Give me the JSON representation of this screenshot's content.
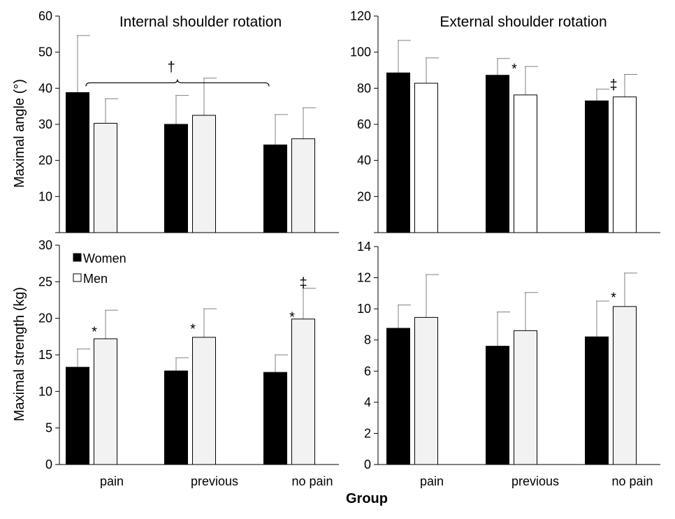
{
  "figure": {
    "xlabel": "Group",
    "categories": [
      "pain",
      "previous",
      "no pain"
    ]
  },
  "legend": {
    "women": "Women",
    "men": "Men"
  },
  "colors": {
    "women": "#000000",
    "men_shaded": "#f2f2f2",
    "men_open": "#ffffff",
    "error_bar": "#808080",
    "axis": "#000000"
  },
  "chart_data": [
    {
      "type": "bar",
      "panel": "top-left",
      "title": "Internal shoulder rotation",
      "ylabel": "Maximal angle (°)",
      "ylim": [
        0,
        60
      ],
      "yticks": [
        0,
        10,
        20,
        30,
        40,
        50,
        60
      ],
      "ytick_labels": [
        "",
        "10",
        "20",
        "30",
        "40",
        "50",
        "60"
      ],
      "categories": [
        "pain",
        "previous",
        "no pain"
      ],
      "series": [
        {
          "name": "Women",
          "values": [
            38.8,
            30.0,
            24.3
          ],
          "errors": [
            15.8,
            8.0,
            8.4
          ]
        },
        {
          "name": "Men",
          "values": [
            30.3,
            32.5,
            26.0
          ],
          "errors": [
            6.8,
            10.3,
            8.6
          ]
        }
      ],
      "annotations": [
        {
          "text": "†",
          "type": "brace",
          "from": 0,
          "to": 2,
          "y": 41.5
        }
      ]
    },
    {
      "type": "bar",
      "panel": "top-right",
      "title": "External shoulder rotation",
      "ylabel": "",
      "ylim": [
        0,
        120
      ],
      "yticks": [
        0,
        20,
        40,
        60,
        80,
        100,
        120
      ],
      "ytick_labels": [
        "",
        "20",
        "40",
        "60",
        "80",
        "100",
        "120"
      ],
      "categories": [
        "pain",
        "previous",
        "no pain"
      ],
      "series": [
        {
          "name": "Women",
          "values": [
            88.5,
            87.2,
            73.0
          ],
          "errors": [
            18.0,
            9.3,
            6.5
          ]
        },
        {
          "name": "Men",
          "values": [
            82.8,
            76.3,
            75.2
          ],
          "errors": [
            14.0,
            15.8,
            12.5
          ]
        }
      ],
      "annotations": [
        {
          "text": "*",
          "category": 1,
          "series": 0,
          "y": 91
        },
        {
          "text": "‡",
          "category": 2,
          "series": 0,
          "y": 82
        }
      ]
    },
    {
      "type": "bar",
      "panel": "bottom-left",
      "title": "",
      "ylabel": "Maximal strength (kg)",
      "ylim": [
        0,
        30
      ],
      "yticks": [
        0,
        5,
        10,
        15,
        20,
        25,
        30
      ],
      "ytick_labels": [
        "0",
        "5",
        "10",
        "15",
        "20",
        "25",
        "30"
      ],
      "categories": [
        "pain",
        "previous",
        "no pain"
      ],
      "series": [
        {
          "name": "Women",
          "values": [
            13.3,
            12.8,
            12.6
          ],
          "errors": [
            2.5,
            1.8,
            2.4
          ]
        },
        {
          "name": "Men",
          "values": [
            17.2,
            17.4,
            19.9
          ],
          "errors": [
            3.9,
            3.9,
            4.2
          ]
        }
      ],
      "annotations": [
        {
          "text": "*",
          "category": 0,
          "series": 0,
          "y": 18.2
        },
        {
          "text": "*",
          "category": 1,
          "series": 0,
          "y": 18.6
        },
        {
          "text": "*",
          "category": 2,
          "series": 0,
          "y": 20.2
        },
        {
          "text": "‡",
          "category": 2,
          "series": 1,
          "y": 24.9
        }
      ],
      "legend_position": "top-left"
    },
    {
      "type": "bar",
      "panel": "bottom-right",
      "title": "",
      "ylabel": "",
      "ylim": [
        0,
        14
      ],
      "yticks": [
        0,
        2,
        4,
        6,
        8,
        10,
        12,
        14
      ],
      "ytick_labels": [
        "0",
        "2",
        "4",
        "6",
        "8",
        "10",
        "12",
        "14"
      ],
      "categories": [
        "pain",
        "previous",
        "no pain"
      ],
      "series": [
        {
          "name": "Women",
          "values": [
            8.75,
            7.6,
            8.2
          ],
          "errors": [
            1.5,
            2.2,
            2.3
          ]
        },
        {
          "name": "Men",
          "values": [
            9.45,
            8.6,
            10.15
          ],
          "errors": [
            2.75,
            2.45,
            2.15
          ]
        }
      ],
      "annotations": [
        {
          "text": "*",
          "category": 2,
          "series": 0,
          "y": 10.75
        }
      ]
    }
  ]
}
